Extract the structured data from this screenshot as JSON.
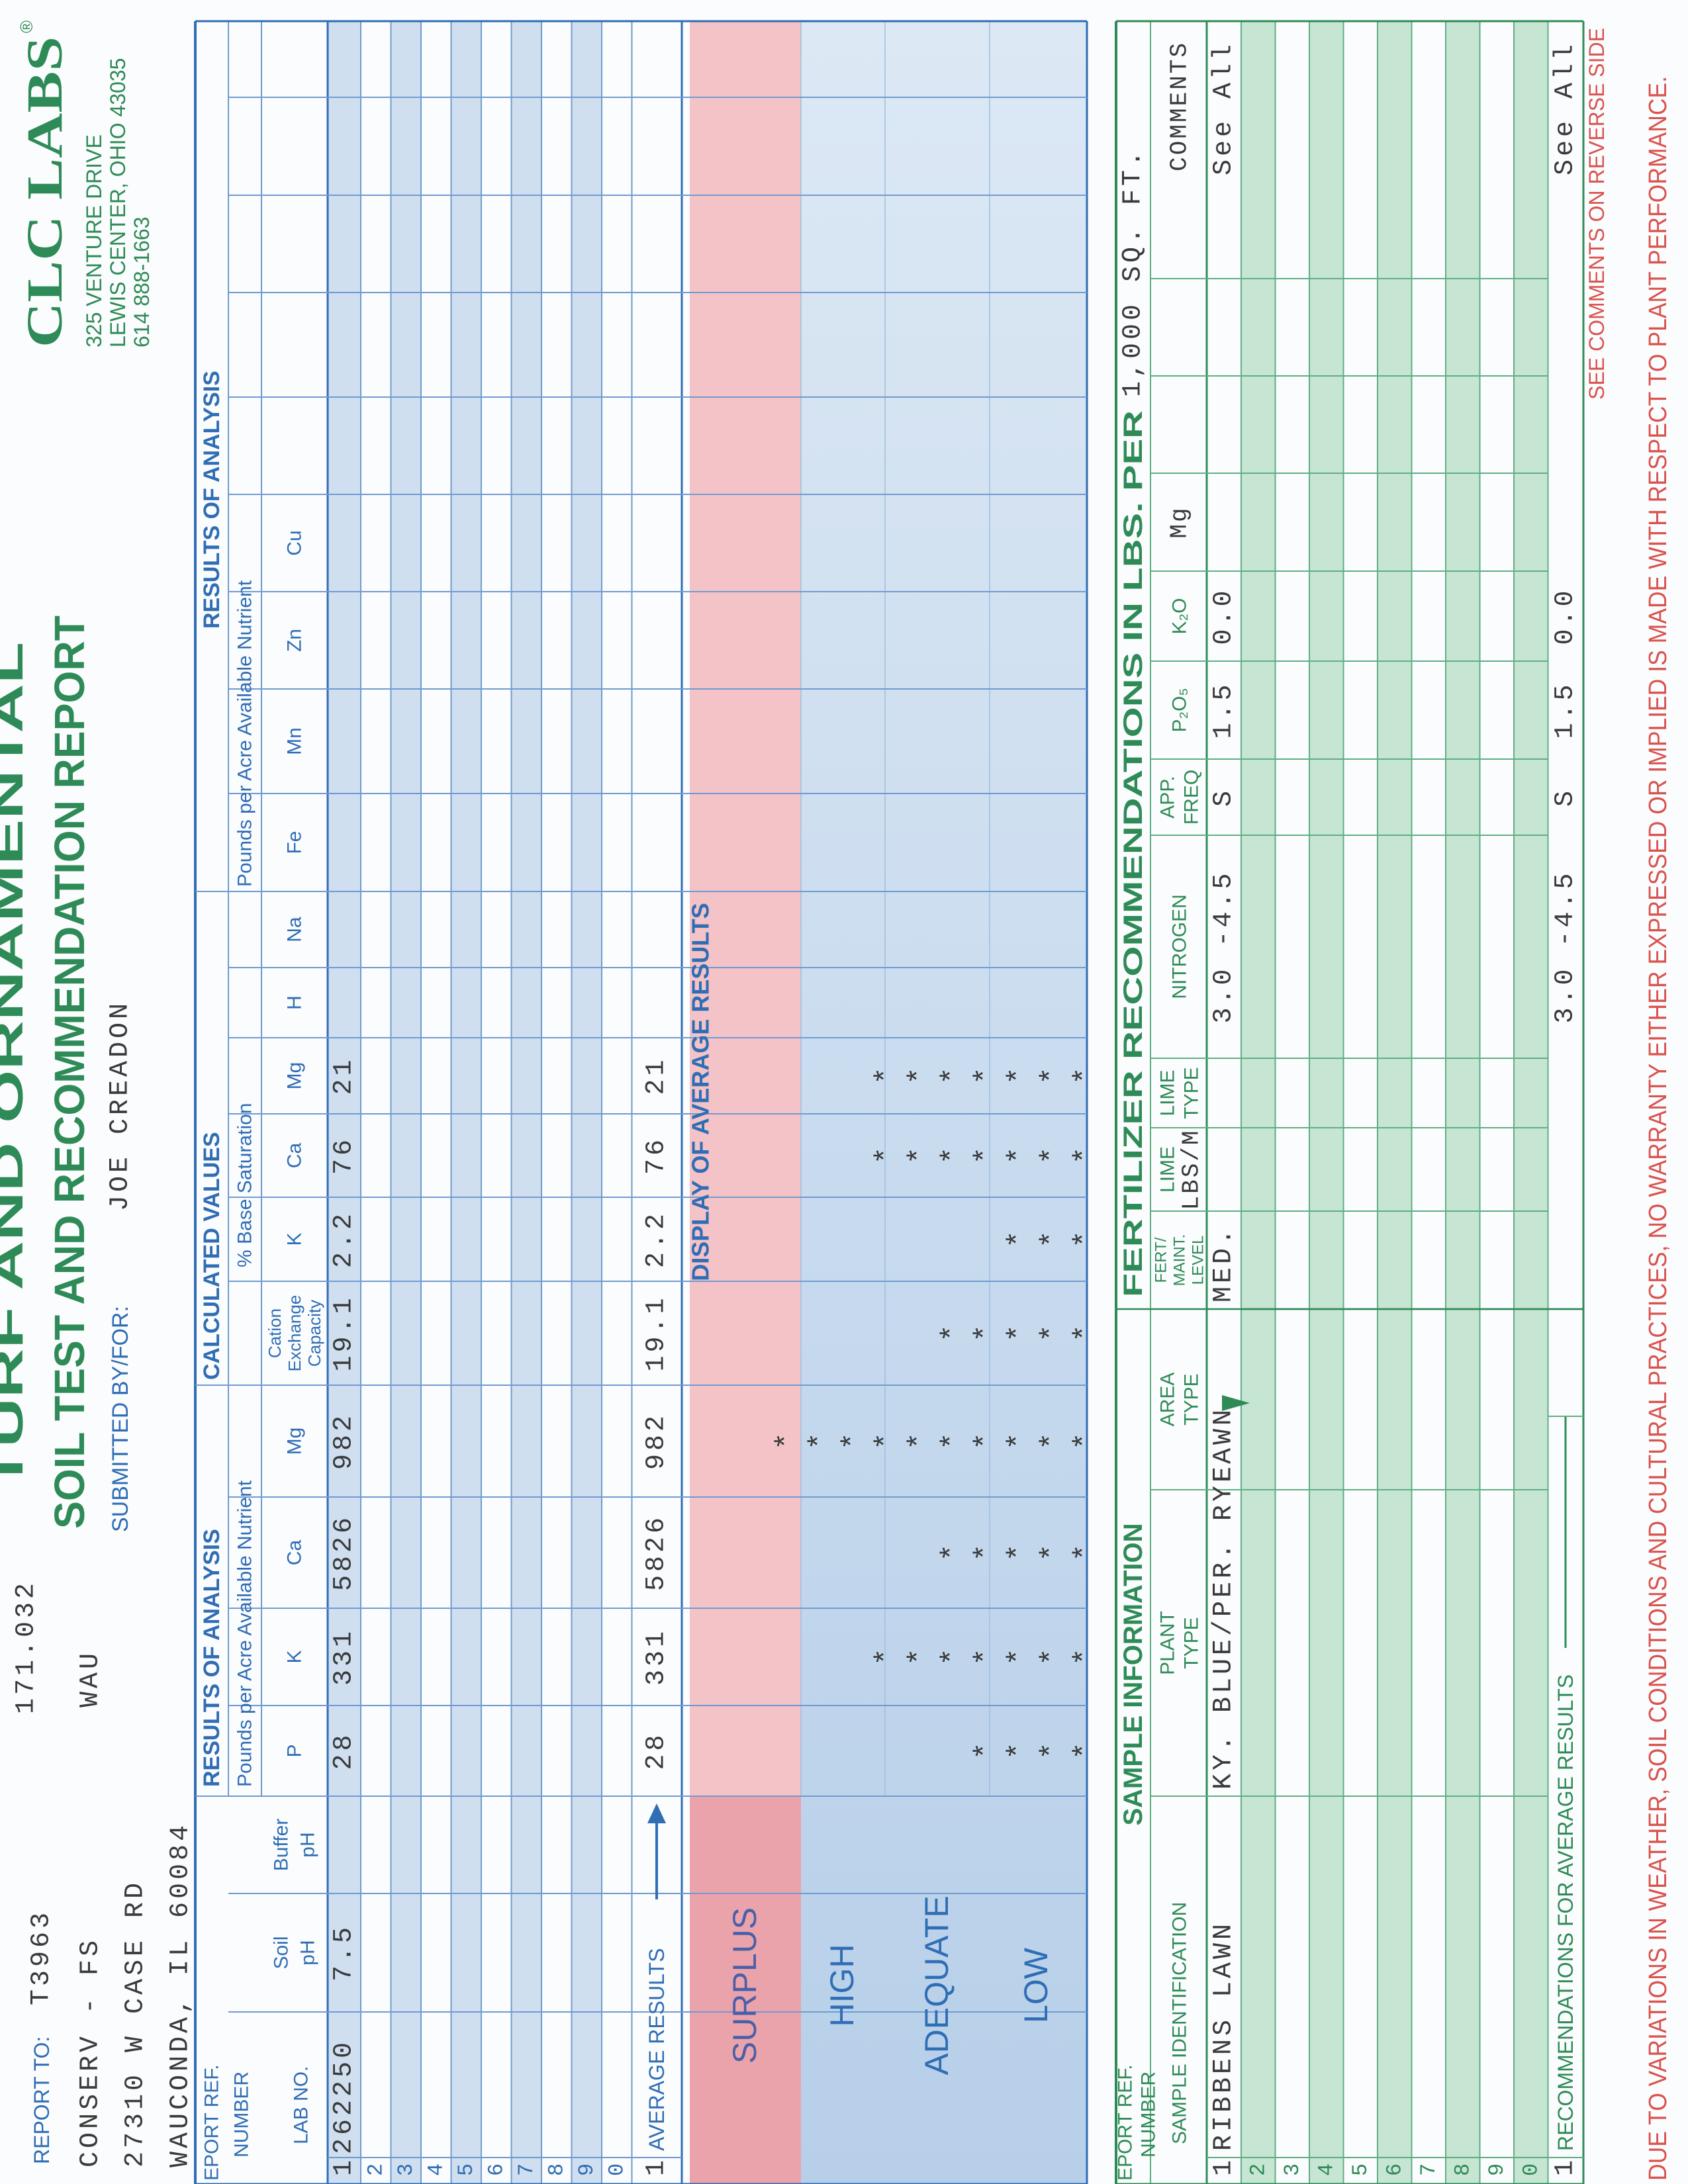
{
  "header": {
    "report_to_label": "REPORT TO:",
    "account": "T3963",
    "address": [
      "CONSERV - FS",
      "27310 W CASE RD",
      "WAUCONDA, IL 60084"
    ],
    "branch": "WAU",
    "reference": "171.032",
    "title_top": "TURF AND ORNAMENTAL",
    "title": "SOIL TEST AND RECOMMENDATION REPORT",
    "submitted_label": "SUBMITTED BY/FOR:",
    "submitted_by": "JOE CREADON"
  },
  "lab": {
    "name": "CLC LABS",
    "registered": "®",
    "address": [
      "325 VENTURE DRIVE",
      "LEWIS CENTER, OHIO 43035",
      "614 888-1663"
    ]
  },
  "results": {
    "ref_header": [
      "EPORT REF.",
      "NUMBER"
    ],
    "lab_no_header": "LAB NO.",
    "groups": [
      "RESULTS OF ANALYSIS",
      "CALCULATED VALUES",
      "RESULTS OF ANALYSIS"
    ],
    "subgroups": [
      "Pounds per Acre Available Nutrient",
      "% Base Saturation",
      "Pounds per Acre Available Nutrient"
    ],
    "columns": [
      [
        "Soil",
        "pH"
      ],
      [
        "Buffer",
        "pH"
      ],
      [
        "P"
      ],
      [
        "K"
      ],
      [
        "Ca"
      ],
      [
        "Mg"
      ],
      [
        "Cation",
        "Exchange",
        "Capacity"
      ],
      [
        "K"
      ],
      [
        "Ca"
      ],
      [
        "Mg"
      ],
      [
        "H"
      ],
      [
        "Na"
      ],
      [
        "Fe"
      ],
      [
        "Mn"
      ],
      [
        "Zn"
      ],
      [
        "Cu"
      ]
    ],
    "first_row": {
      "number": "1",
      "lab_no": "262250",
      "values": [
        "7.5",
        null,
        "28",
        "331",
        "5826",
        "982",
        "19.1",
        "2.2",
        "76",
        "21"
      ]
    },
    "row_numbers": [
      "2",
      "3",
      "4",
      "5",
      "6",
      "7",
      "8",
      "9",
      "0"
    ],
    "average": {
      "number": "1",
      "label": "AVERAGE RESULTS",
      "values": [
        null,
        null,
        "28",
        "331",
        "5826",
        "982",
        "19.1",
        "2.2",
        "76",
        "21"
      ]
    }
  },
  "display": {
    "title": "DISPLAY OF AVERAGE RESULTS",
    "levels": [
      "SURPLUS",
      "HIGH",
      "ADEQUATE",
      "LOW"
    ],
    "star": "*",
    "stars": [
      null,
      null,
      4,
      7,
      5,
      10,
      5,
      3,
      7,
      7
    ]
  },
  "sample": {
    "title": "SAMPLE INFORMATION",
    "ref_header": [
      "EPORT REF.",
      "NUMBER"
    ],
    "columns": [
      [
        "SAMPLE IDENTIFICATION"
      ],
      [
        "PLANT",
        "TYPE"
      ],
      [
        "AREA",
        "TYPE"
      ],
      [
        "FERT/",
        "MAINT.",
        "LEVEL"
      ],
      [
        "LIME",
        "LBS/M"
      ],
      [
        "LIME",
        "TYPE"
      ]
    ]
  },
  "fertilizer": {
    "title": "FERTILIZER RECOMMENDATIONS IN LBS. PER",
    "unit": "1,000 SQ. FT.",
    "columns": [
      [
        "NITROGEN"
      ],
      [
        "APP.",
        "FREQ"
      ],
      [
        "P₂O₅"
      ],
      [
        "K₂O"
      ],
      [
        "Mg"
      ],
      [
        "COMMENTS"
      ]
    ]
  },
  "recommendations": {
    "first_row": {
      "number": "1",
      "cells": [
        "RIBBENS LAWN",
        "KY. BLUE/PER. RYE",
        "LAWN",
        "MED.",
        null,
        null,
        "3.0 -4.5",
        "S",
        "1.5",
        "0.0",
        null,
        "See All"
      ]
    },
    "row_numbers": [
      "2",
      "3",
      "4",
      "5",
      "6",
      "7",
      "8",
      "9",
      "0"
    ],
    "average": {
      "number": "1",
      "label": "RECOMMENDATIONS FOR AVERAGE RESULTS",
      "cells": [
        null,
        null,
        null,
        null,
        null,
        null,
        "3.0 -4.5",
        "S",
        "1.5",
        "0.0",
        null,
        "See All"
      ]
    }
  },
  "footer": {
    "reverse": "SEE COMMENTS ON REVERSE SIDE",
    "warranty": "DUE TO VARIATIONS IN WEATHER, SOIL CONDITIONS AND CULTURAL PRACTICES, NO WARRANTY EITHER EXPRESSED OR IMPLIED IS MADE WITH RESPECT TO PLANT PERFORMANCE."
  }
}
